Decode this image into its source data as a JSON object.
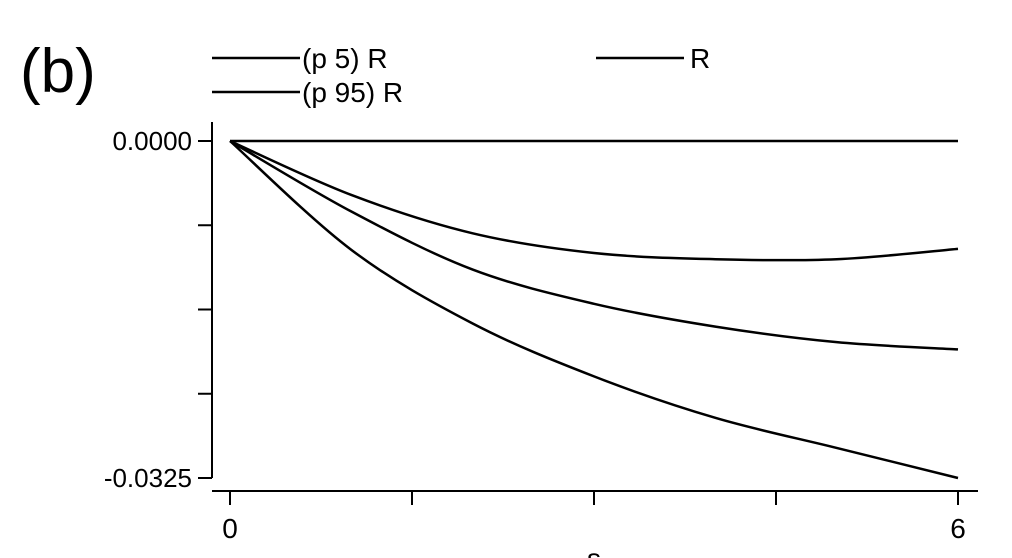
{
  "panel_label": "(b)",
  "chart_data": {
    "type": "line",
    "xlabel": "s",
    "ylabel": "",
    "xlim": [
      0,
      6
    ],
    "ylim": [
      -0.0325,
      0.0
    ],
    "x_ticks": [
      0,
      1.5,
      3,
      4.5,
      6
    ],
    "x_tick_labels": [
      "0",
      "",
      "",
      "",
      "6"
    ],
    "y_ticks": [
      0.0,
      -0.008125,
      -0.01625,
      -0.024375,
      -0.0325
    ],
    "y_tick_labels": [
      "0.0000",
      "",
      "",
      "",
      "-0.0325"
    ],
    "grid": false,
    "legend_placement": "top",
    "series": [
      {
        "name": "(p 5) R",
        "x": [
          0,
          1,
          2,
          3,
          4,
          5,
          6
        ],
        "y": [
          0.0,
          -0.0105,
          -0.0176,
          -0.0227,
          -0.0267,
          -0.0296,
          -0.0325
        ]
      },
      {
        "name": "R",
        "x": [
          0,
          1,
          2,
          3,
          4,
          5,
          6
        ],
        "y": [
          0.0,
          -0.0068,
          -0.0124,
          -0.0157,
          -0.0179,
          -0.0194,
          -0.0201
        ]
      },
      {
        "name": "(p 95) R",
        "x": [
          0,
          1,
          2,
          3,
          4,
          5,
          6
        ],
        "y": [
          0.0,
          -0.0052,
          -0.0089,
          -0.0108,
          -0.0114,
          -0.0114,
          -0.0104
        ]
      },
      {
        "name": "",
        "x": [
          0,
          6
        ],
        "y": [
          0.0,
          0.0
        ]
      }
    ]
  }
}
